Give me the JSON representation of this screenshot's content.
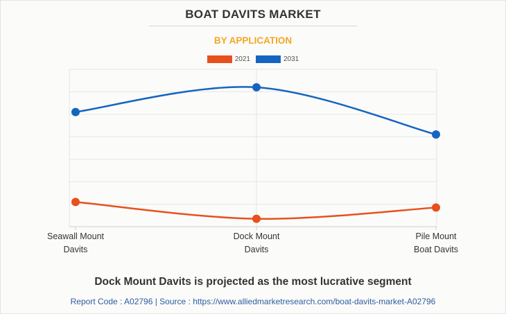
{
  "header": {
    "title": "BOAT DAVITS MARKET",
    "subtitle": "BY APPLICATION"
  },
  "footer": {
    "headline": "Dock Mount Davits is projected as the most lucrative segment",
    "source": "Report Code : A02796  |  Source : https://www.alliedmarketresearch.com/boat-davits-market-A02796"
  },
  "colors": {
    "series_2021": "#e8501c",
    "series_2031": "#1565c0",
    "grid": "#e6e6e6",
    "title": "#333333",
    "subtitle": "#f5a623",
    "source": "#2e5d9f"
  },
  "chart_data": {
    "type": "line",
    "title": "BOAT DAVITS MARKET",
    "subtitle": "BY APPLICATION",
    "categories": [
      [
        "Seawall Mount",
        "Davits"
      ],
      [
        "Dock Mount",
        "Davits"
      ],
      [
        "Pile Mount",
        "Boat Davits"
      ]
    ],
    "series": [
      {
        "name": "2021",
        "color": "#e8501c",
        "values": [
          1.1,
          0.35,
          0.85
        ]
      },
      {
        "name": "2031",
        "color": "#1565c0",
        "values": [
          5.1,
          6.2,
          4.1
        ]
      }
    ],
    "ylim": [
      0,
      7
    ],
    "y_ticks": [
      0,
      1,
      2,
      3,
      4,
      5,
      6,
      7
    ],
    "y_tick_labels_shown": false,
    "grid": true,
    "smooth": true,
    "legend_position": "top-center",
    "xlabel": "",
    "ylabel": ""
  }
}
